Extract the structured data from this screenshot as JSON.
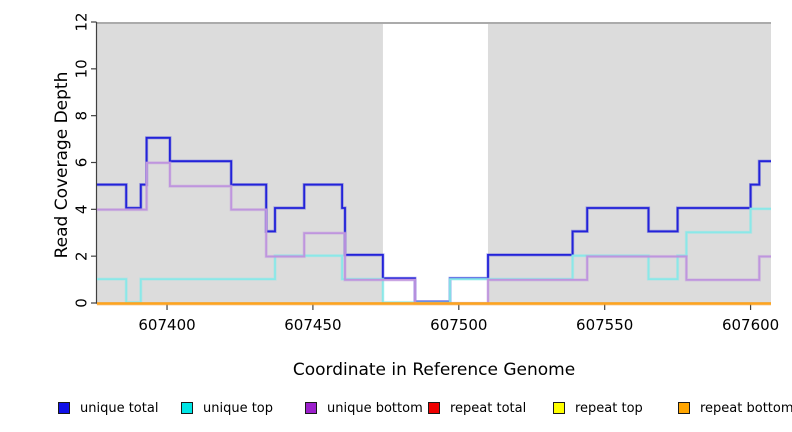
{
  "chart_data": {
    "type": "line",
    "subtype": "step",
    "title": "",
    "xlabel": "Coordinate in Reference Genome",
    "ylabel": "Read Coverage Depth",
    "xlim": [
      607376,
      607607
    ],
    "ylim": [
      0,
      12
    ],
    "x_ticks": [
      607400,
      607450,
      607500,
      607550,
      607600
    ],
    "y_ticks": [
      0,
      2,
      4,
      6,
      8,
      10,
      12
    ],
    "grid": false,
    "legend_position": "bottom",
    "panel_bg": "#dcdcdc",
    "panel_top_border": "#ababab",
    "axis_color": "#404040",
    "gap_band": {
      "from": 607474,
      "to": 607510,
      "color": "#ffffff"
    },
    "x_end": 607607,
    "series": [
      {
        "name": "unique total",
        "legend_color": "#1010e8",
        "line_color": "#2222d9",
        "points": [
          [
            607376,
            5
          ],
          [
            607386,
            4
          ],
          [
            607391,
            5
          ],
          [
            607393,
            7
          ],
          [
            607401,
            6
          ],
          [
            607422,
            5
          ],
          [
            607434,
            3
          ],
          [
            607437,
            4
          ],
          [
            607447,
            5
          ],
          [
            607460,
            4
          ],
          [
            607461,
            2
          ],
          [
            607474,
            1
          ],
          [
            607485,
            0
          ],
          [
            607497,
            1
          ],
          [
            607510,
            2
          ],
          [
            607539,
            3
          ],
          [
            607544,
            4
          ],
          [
            607565,
            3
          ],
          [
            607575,
            4
          ],
          [
            607600,
            5
          ],
          [
            607603,
            6
          ]
        ]
      },
      {
        "name": "unique top",
        "legend_color": "#00e5e5",
        "line_color": "#8ae8e8",
        "points": [
          [
            607376,
            1
          ],
          [
            607386,
            0
          ],
          [
            607391,
            1
          ],
          [
            607437,
            2
          ],
          [
            607460,
            1
          ],
          [
            607474,
            0
          ],
          [
            607497,
            1
          ],
          [
            607539,
            2
          ],
          [
            607565,
            1
          ],
          [
            607575,
            2
          ],
          [
            607578,
            3
          ],
          [
            607600,
            4
          ]
        ]
      },
      {
        "name": "unique bottom",
        "legend_color": "#9c20cc",
        "line_color": "#bf95de",
        "points": [
          [
            607376,
            4
          ],
          [
            607393,
            6
          ],
          [
            607401,
            5
          ],
          [
            607422,
            4
          ],
          [
            607434,
            2
          ],
          [
            607447,
            3
          ],
          [
            607461,
            1
          ],
          [
            607485,
            0
          ],
          [
            607510,
            1
          ],
          [
            607544,
            2
          ],
          [
            607578,
            1
          ],
          [
            607603,
            2
          ]
        ]
      },
      {
        "name": "repeat total",
        "legend_color": "#ee0000",
        "line_color": "#dd3333",
        "points": [
          [
            607376,
            0
          ]
        ]
      },
      {
        "name": "repeat top",
        "legend_color": "#ffff00",
        "line_color": "#f0e040",
        "points": [
          [
            607376,
            0
          ]
        ]
      },
      {
        "name": "repeat bottom",
        "legend_color": "#ffa500",
        "line_color": "#ffa41e",
        "points": [
          [
            607376,
            0
          ]
        ]
      }
    ]
  }
}
